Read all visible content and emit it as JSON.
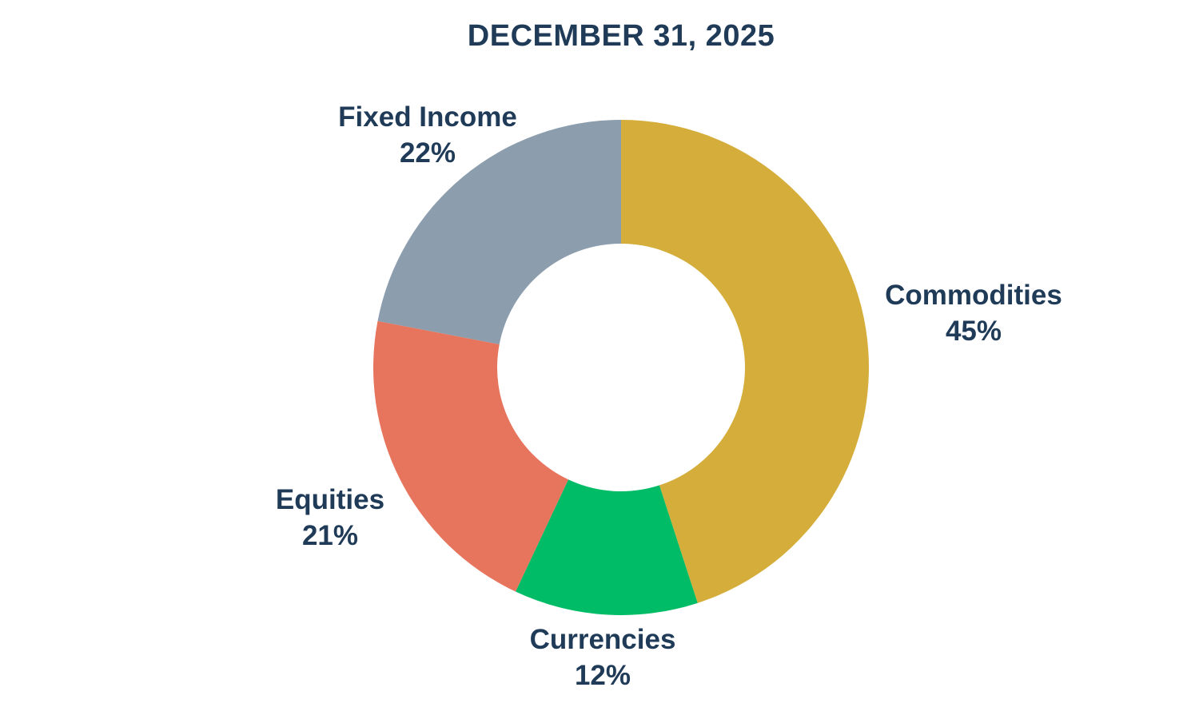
{
  "title": "DECEMBER 31, 2025",
  "colors": {
    "background": "#ffffff",
    "text": "#1f3b58"
  },
  "chart_data": {
    "type": "pie",
    "subtype": "donut",
    "title": "DECEMBER 31, 2025",
    "categories": [
      "Commodities",
      "Currencies",
      "Equities",
      "Fixed Income"
    ],
    "values": [
      45,
      12,
      21,
      22
    ],
    "unit": "%",
    "value_labels": [
      "45%",
      "12%",
      "21%",
      "22%"
    ],
    "colors": [
      "#d4ad3b",
      "#00bc66",
      "#e7745c",
      "#8c9dad"
    ],
    "start_angle_deg": 0,
    "direction": "clockwise",
    "inner_radius_ratio": 0.5,
    "legend": "none",
    "label_position": "outside"
  }
}
